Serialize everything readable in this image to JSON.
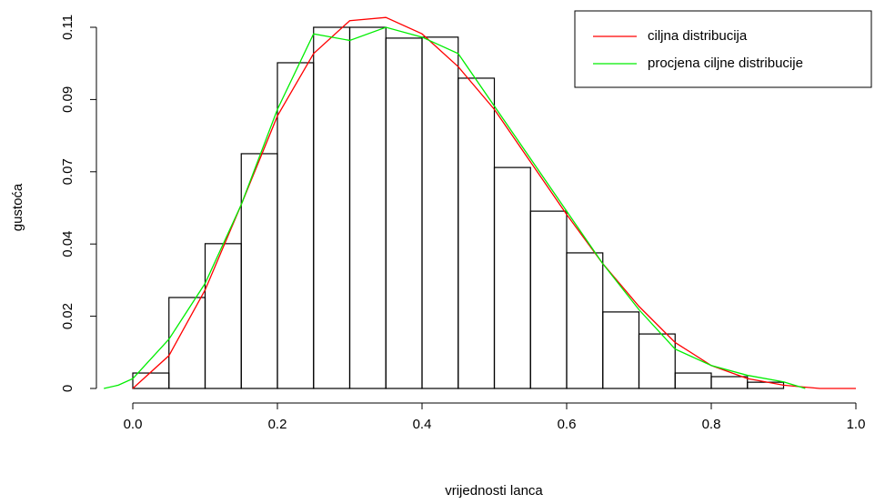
{
  "chart_data": {
    "type": "histogram",
    "xlabel": "vrijednosti lanca",
    "ylabel": "gustoća",
    "bins": [
      0,
      0.05,
      0.1,
      0.15,
      0.2,
      0.25,
      0.3,
      0.35,
      0.4,
      0.45,
      0.5,
      0.55,
      0.6,
      0.65,
      0.7,
      0.75,
      0.8,
      0.85,
      0.9
    ],
    "values": [
      0.0047,
      0.0277,
      0.0441,
      0.0715,
      0.0992,
      0.11,
      0.11,
      0.1067,
      0.107,
      0.0945,
      0.0673,
      0.054,
      0.0413,
      0.0233,
      0.0166,
      0.0047,
      0.0036,
      0.0019
    ],
    "lines": [
      {
        "name": "ciljna distribucija",
        "color": "#ff0000",
        "x": [
          0,
          0.05,
          0.1,
          0.15,
          0.2,
          0.25,
          0.3,
          0.35,
          0.4,
          0.45,
          0.5,
          0.55,
          0.6,
          0.65,
          0.7,
          0.75,
          0.8,
          0.85,
          0.9,
          0.95,
          1.0
        ],
        "values": [
          0,
          0.01,
          0.03,
          0.056,
          0.083,
          0.102,
          0.112,
          0.113,
          0.108,
          0.098,
          0.085,
          0.069,
          0.053,
          0.038,
          0.025,
          0.014,
          0.007,
          0.003,
          0.001,
          0,
          0
        ]
      },
      {
        "name": "procjena ciljne distribucije",
        "color": "#00ee00",
        "x": [
          -0.04,
          -0.02,
          0,
          0.05,
          0.1,
          0.15,
          0.2,
          0.25,
          0.3,
          0.35,
          0.4,
          0.45,
          0.5,
          0.55,
          0.6,
          0.65,
          0.7,
          0.75,
          0.8,
          0.85,
          0.9,
          0.93
        ],
        "values": [
          0,
          0.001,
          0.003,
          0.015,
          0.032,
          0.056,
          0.085,
          0.108,
          0.106,
          0.11,
          0.107,
          0.102,
          0.086,
          0.07,
          0.054,
          0.038,
          0.024,
          0.012,
          0.007,
          0.004,
          0.002,
          0
        ]
      }
    ],
    "xlim": [
      0,
      1
    ],
    "ylim": [
      0,
      0.11
    ],
    "xticks": [
      {
        "value": 0,
        "label": "0.0"
      },
      0.2,
      0.4,
      0.6,
      0.8,
      {
        "value": 1,
        "label": "1.0"
      }
    ],
    "yticks": [
      0,
      {
        "value": 0.022,
        "label": "0.02"
      },
      {
        "value": 0.044,
        "label": "0.04"
      },
      {
        "value": 0.066,
        "label": "0.07"
      },
      {
        "value": 0.088,
        "label": "0.09"
      },
      0.11
    ],
    "legend": "topright"
  }
}
